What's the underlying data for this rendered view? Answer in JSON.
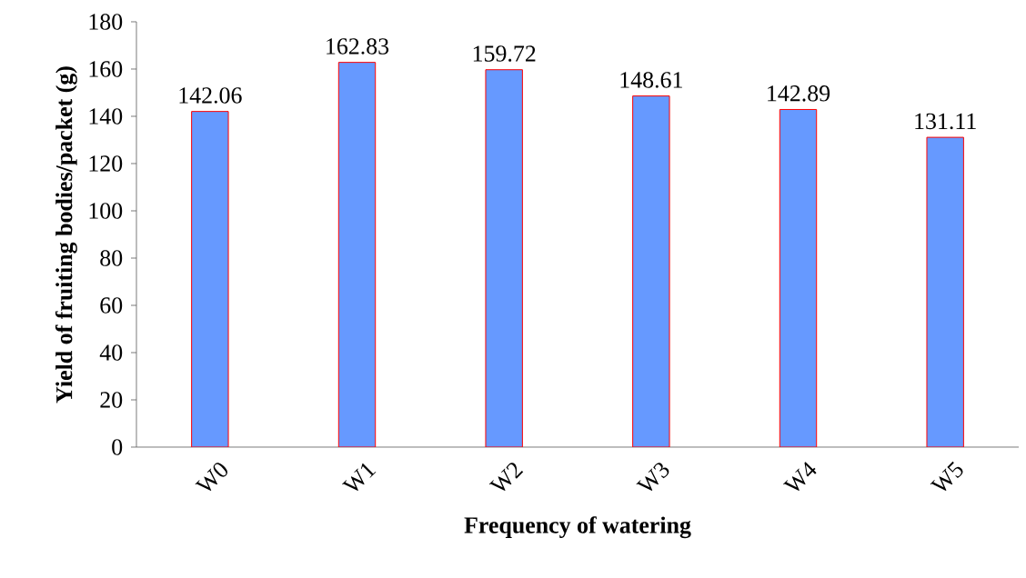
{
  "chart_data": {
    "type": "bar",
    "xlabel": "Frequency of watering",
    "ylabel": "Yield of fruiting bodies/packet (g)",
    "categories": [
      "W0",
      "W1",
      "W2",
      "W3",
      "W4",
      "W5"
    ],
    "values": [
      142.06,
      162.83,
      159.72,
      148.61,
      142.89,
      131.11
    ],
    "color": "#6699ff",
    "ylim": [
      0,
      180
    ],
    "yticks": [
      0,
      20,
      40,
      60,
      80,
      100,
      120,
      140,
      160,
      180
    ],
    "data_labels": true
  }
}
